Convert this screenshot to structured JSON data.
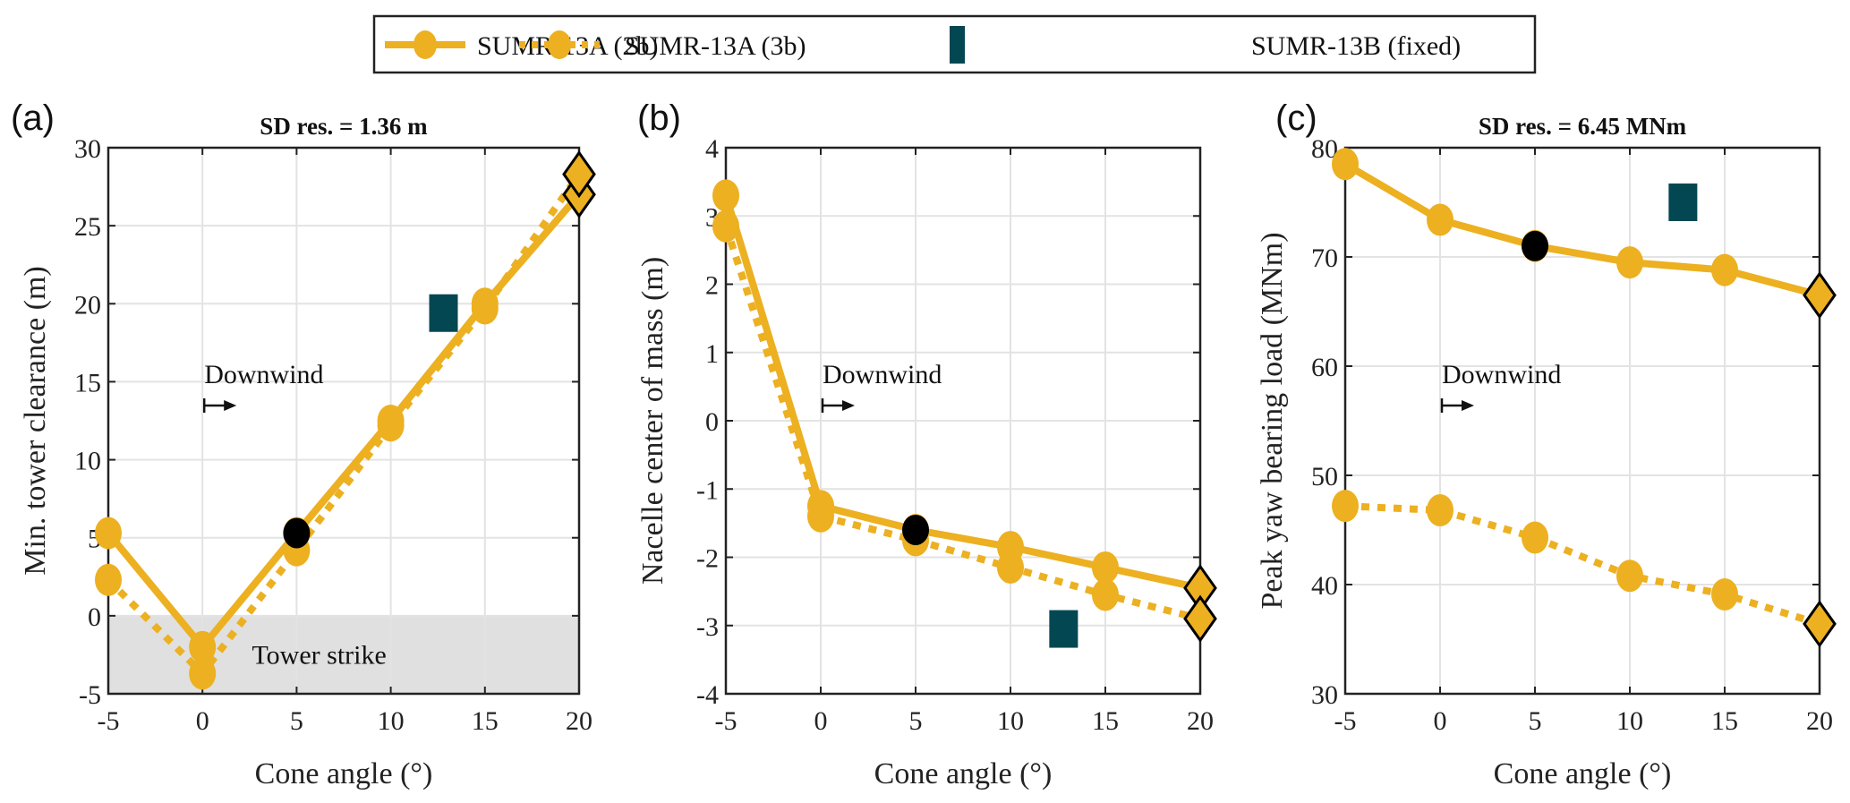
{
  "legend": {
    "items": [
      {
        "label": "SUMR-13A (2b)",
        "style": "solid-circle"
      },
      {
        "label": "SUMR-13A (3b)",
        "style": "dotted-circle"
      },
      {
        "label": "SUMR-13B (fixed)",
        "style": "square"
      }
    ]
  },
  "colors": {
    "gold": "#ECB021",
    "teal": "#034752",
    "black": "#000000",
    "strike_fill": "#E0E0E0",
    "grid": "#E3E3E3"
  },
  "chart_data": [
    {
      "panel": "(a)",
      "type": "line",
      "title": "SD res. = 1.36 m",
      "xlabel": "Cone angle (°)",
      "ylabel": "Min. tower clearance (m)",
      "xlim": [
        -5,
        20
      ],
      "ylim": [
        -5,
        30
      ],
      "xticks": [
        -5,
        0,
        5,
        10,
        15,
        20
      ],
      "yticks": [
        -5,
        0,
        5,
        10,
        15,
        20,
        25,
        30
      ],
      "grid": true,
      "x": [
        -5,
        0,
        5,
        10,
        15,
        20
      ],
      "series": [
        {
          "name": "SUMR-13A (2b)",
          "values": [
            5.3,
            -2.0,
            5.3,
            12.5,
            20.0,
            27.0
          ]
        },
        {
          "name": "SUMR-13A (3b)",
          "values": [
            2.3,
            -3.7,
            4.2,
            12.2,
            19.7,
            28.3
          ]
        }
      ],
      "fixed_point": {
        "name": "SUMR-13B (fixed)",
        "x": 12.8,
        "y": 19.4
      },
      "highlight_point": {
        "x": 5,
        "y": 5.3
      },
      "annotations": [
        "Downwind",
        "Tower strike"
      ],
      "shaded_region": {
        "label": "Tower strike",
        "y_range": [
          -5,
          0
        ]
      }
    },
    {
      "panel": "(b)",
      "type": "line",
      "title": "",
      "xlabel": "Cone angle (°)",
      "ylabel": "Nacelle center of mass (m)",
      "xlim": [
        -5,
        20
      ],
      "ylim": [
        -4,
        4
      ],
      "xticks": [
        -5,
        0,
        5,
        10,
        15,
        20
      ],
      "yticks": [
        -4,
        -3,
        -2,
        -1,
        0,
        1,
        2,
        3,
        4
      ],
      "grid": true,
      "x": [
        -5,
        0,
        5,
        10,
        15,
        20
      ],
      "series": [
        {
          "name": "SUMR-13A (2b)",
          "values": [
            3.3,
            -1.25,
            -1.6,
            -1.85,
            -2.15,
            -2.45
          ]
        },
        {
          "name": "SUMR-13A (3b)",
          "values": [
            2.85,
            -1.4,
            -1.75,
            -2.15,
            -2.55,
            -2.9
          ]
        }
      ],
      "fixed_point": {
        "name": "SUMR-13B (fixed)",
        "x": 12.8,
        "y": -3.05
      },
      "highlight_point": {
        "x": 5,
        "y": -1.6
      },
      "annotations": [
        "Downwind"
      ]
    },
    {
      "panel": "(c)",
      "type": "line",
      "title": "SD res. = 6.45 MNm",
      "xlabel": "Cone angle (°)",
      "ylabel": "Peak yaw bearing load (MNm)",
      "xlim": [
        -5,
        20
      ],
      "ylim": [
        30,
        80
      ],
      "xticks": [
        -5,
        0,
        5,
        10,
        15,
        20
      ],
      "yticks": [
        30,
        40,
        50,
        60,
        70,
        80
      ],
      "grid": true,
      "x": [
        -5,
        0,
        5,
        10,
        15,
        20
      ],
      "series": [
        {
          "name": "SUMR-13A (2b)",
          "values": [
            78.5,
            73.4,
            71.0,
            69.5,
            68.8,
            66.5
          ]
        },
        {
          "name": "SUMR-13A (3b)",
          "values": [
            47.2,
            46.8,
            44.3,
            40.8,
            39.1,
            36.4
          ]
        }
      ],
      "fixed_point": {
        "name": "SUMR-13B (fixed)",
        "x": 12.8,
        "y": 75.0
      },
      "highlight_point": {
        "x": 5,
        "y": 71.0
      },
      "annotations": [
        "Downwind"
      ]
    }
  ]
}
